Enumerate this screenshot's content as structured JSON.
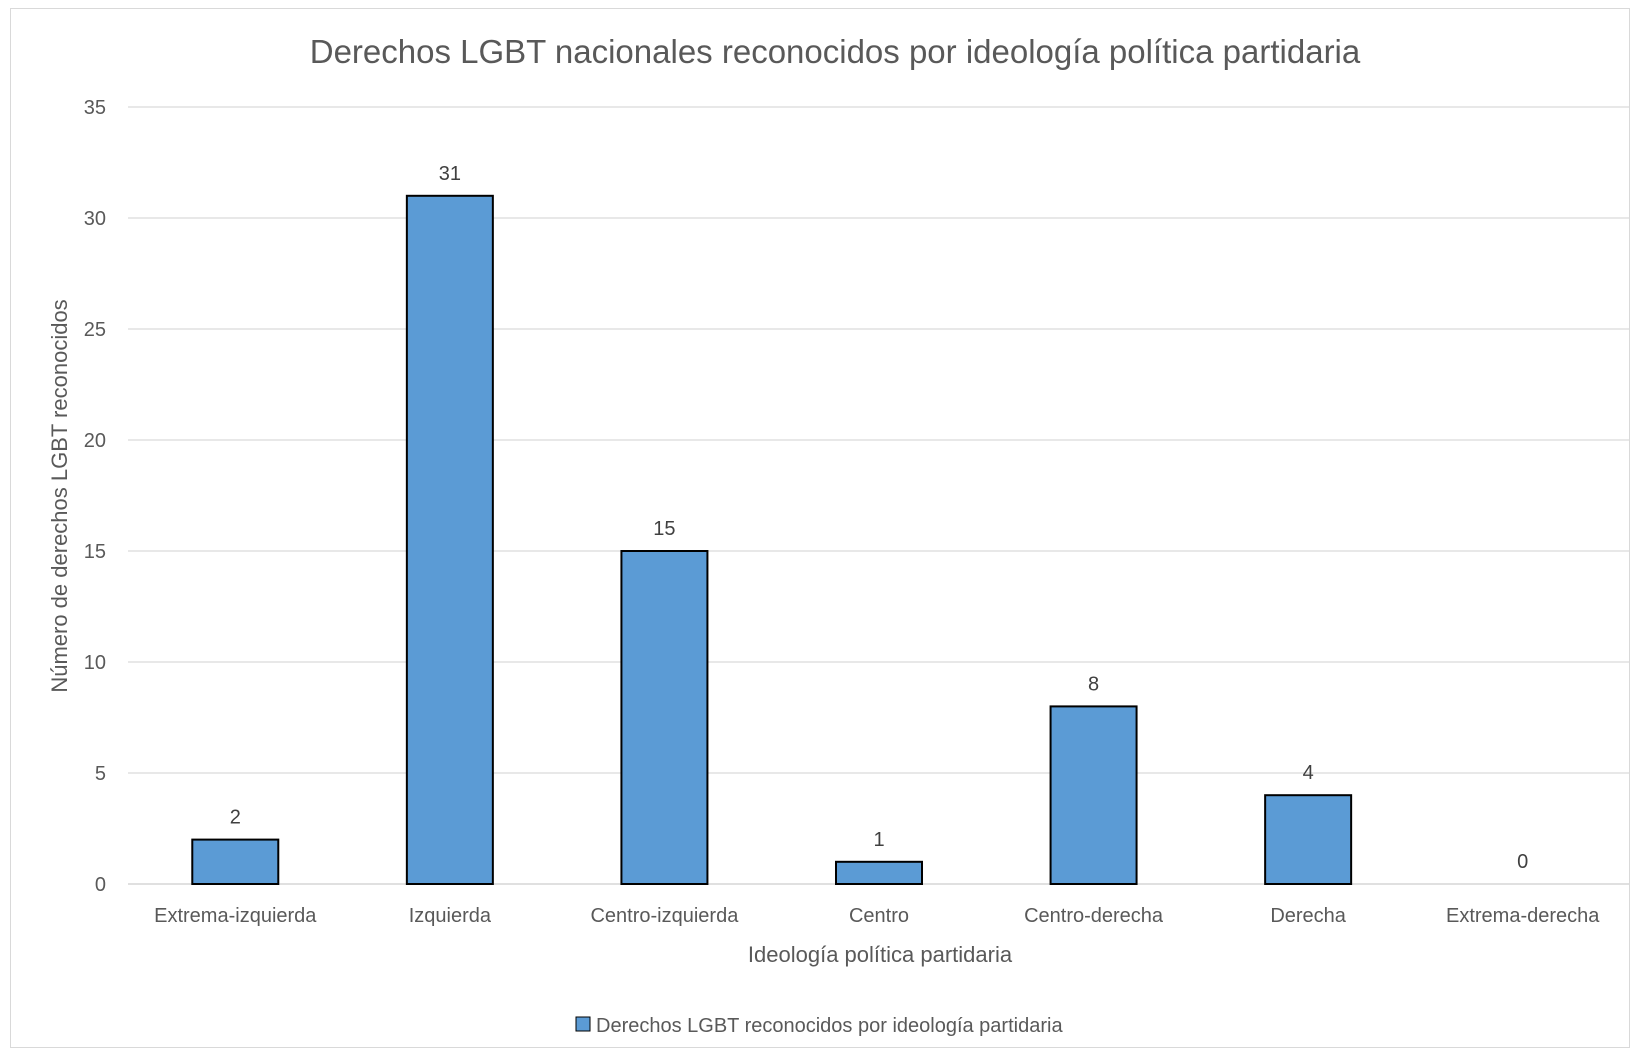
{
  "chart_data": {
    "type": "bar",
    "title": "Derechos LGBT nacionales reconocidos por ideología política partidaria",
    "xlabel": "Ideología política partidaria",
    "ylabel": "Número de derechos LGBT reconocidos",
    "categories": [
      "Extrema-izquierda",
      "Izquierda",
      "Centro-izquierda",
      "Centro",
      "Centro-derecha",
      "Derecha",
      "Extrema-derecha"
    ],
    "series": [
      {
        "name": "Derechos LGBT reconocidos por ideología partidaria",
        "values": [
          2,
          31,
          15,
          1,
          8,
          4,
          0
        ]
      }
    ],
    "ylim": [
      0,
      35
    ],
    "yticks": [
      "0",
      "5",
      "10",
      "15",
      "20",
      "25",
      "30",
      "35"
    ],
    "grid": true,
    "legend_position": "bottom",
    "bar_color": "#5b9bd5",
    "bar_border_color": "#000000",
    "gridline_color": "#d9d9d9"
  }
}
